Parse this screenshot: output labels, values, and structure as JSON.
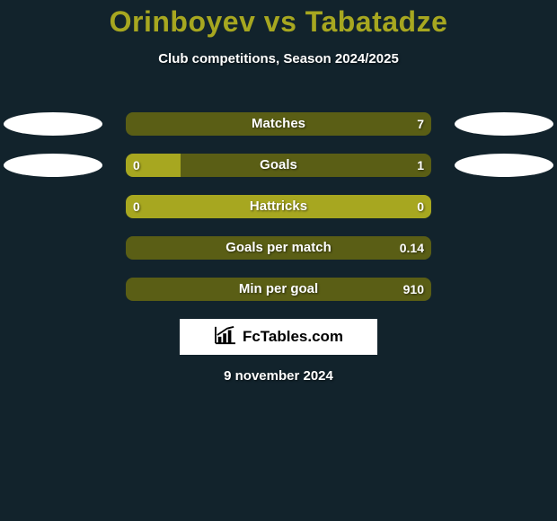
{
  "background_color": "#12232c",
  "title": {
    "text": "Orinboyev vs Tabatadze",
    "color": "#a7a720",
    "fontsize": 32
  },
  "subtitle": {
    "text": "Club competitions, Season 2024/2025",
    "color": "#ffffff",
    "fontsize": 15
  },
  "colors": {
    "left_fill": "#a7a720",
    "right_fill": "#5a5e15",
    "ellipse": "#ffffff"
  },
  "rows": [
    {
      "label": "Matches",
      "left": "",
      "right": "7",
      "left_pct": 0,
      "right_pct": 100,
      "show_left_ellipse": true,
      "show_right_ellipse": true
    },
    {
      "label": "Goals",
      "left": "0",
      "right": "1",
      "left_pct": 18,
      "right_pct": 82,
      "show_left_ellipse": true,
      "show_right_ellipse": true
    },
    {
      "label": "Hattricks",
      "left": "0",
      "right": "0",
      "left_pct": 100,
      "right_pct": 0,
      "show_left_ellipse": false,
      "show_right_ellipse": false
    },
    {
      "label": "Goals per match",
      "left": "",
      "right": "0.14",
      "left_pct": 0,
      "right_pct": 100,
      "show_left_ellipse": false,
      "show_right_ellipse": false
    },
    {
      "label": "Min per goal",
      "left": "",
      "right": "910",
      "left_pct": 0,
      "right_pct": 100,
      "show_left_ellipse": false,
      "show_right_ellipse": false
    }
  ],
  "branding": {
    "text": "FcTables.com"
  },
  "date": "9 november 2024"
}
